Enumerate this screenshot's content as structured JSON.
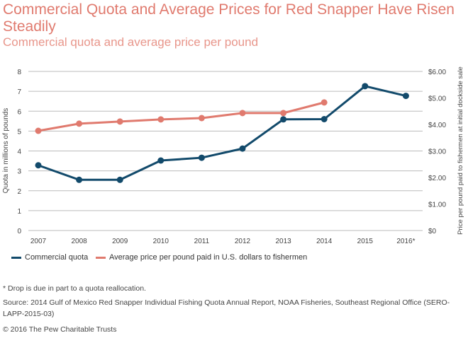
{
  "title": "Commercial Quota and Average Prices for Red Snapper Have Risen Steadily",
  "subtitle": "Commercial quota and average price per pound",
  "chart_data": {
    "type": "line",
    "x": [
      "2007",
      "2008",
      "2009",
      "2010",
      "2011",
      "2012",
      "2013",
      "2014",
      "2015",
      "2016*"
    ],
    "ylabel": "Quota in millions of pounds",
    "ylabel_right": "Price per pound paid to fishermen at initial dockside sale",
    "ylim": [
      0,
      8
    ],
    "ylim_right": [
      0,
      6
    ],
    "yticks": [
      "0",
      "1",
      "2",
      "3",
      "4",
      "5",
      "6",
      "7",
      "8"
    ],
    "yticks_right": [
      "$0",
      "$1.00",
      "$2.00",
      "$3.00",
      "$4.00",
      "$5.00",
      "$6.00"
    ],
    "grid": true,
    "legend_placement": "bottom",
    "series": [
      {
        "name": "Commercial quota",
        "axis": "left",
        "color": "#124a6b",
        "values": [
          3.28,
          2.55,
          2.55,
          3.52,
          3.66,
          4.12,
          5.59,
          5.6,
          7.26,
          6.77
        ]
      },
      {
        "name": "Average price per pound paid in U.S. dollars to fishermen",
        "axis": "right",
        "color": "#e07a6e",
        "values": [
          3.76,
          4.03,
          4.11,
          4.19,
          4.24,
          4.43,
          4.43,
          4.83,
          null,
          null
        ]
      }
    ]
  },
  "footnote": "*  Drop is due in part to a quota reallocation.",
  "source": "Source: 2014 Gulf of Mexico Red Snapper Individual Fishing Quota Annual Report, NOAA Fisheries, Southeast Regional Office (SERO-LAPP-2015-03)",
  "copyright": "© 2016 The Pew Charitable Trusts"
}
